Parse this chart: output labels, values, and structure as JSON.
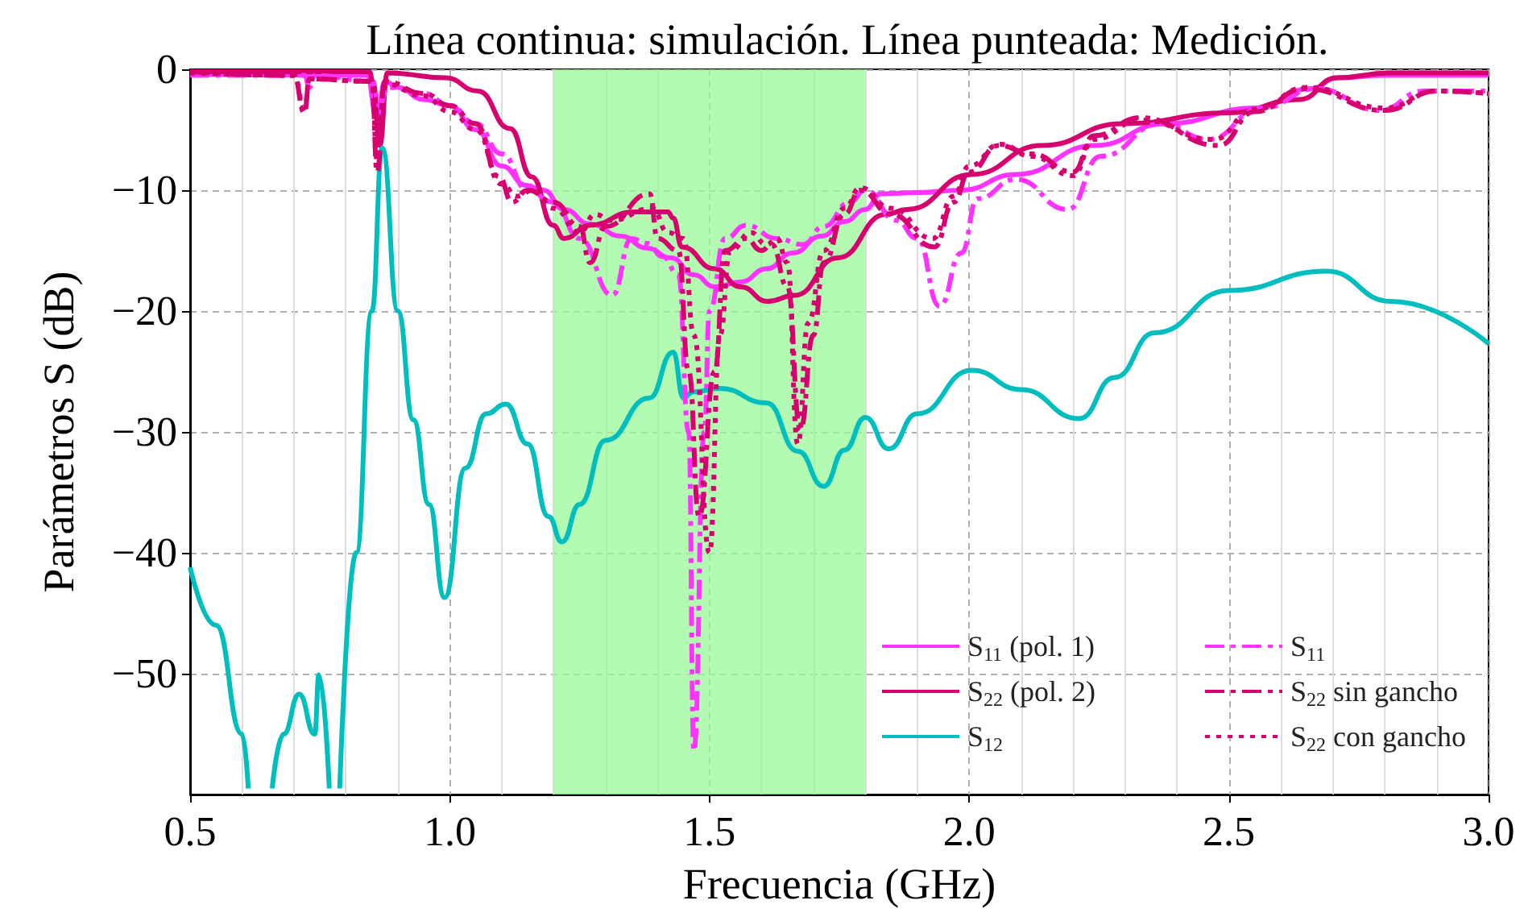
{
  "chart_data": {
    "type": "line",
    "title": "Línea continua: simulación. Línea punteada: Medición.",
    "xlabel": "Frecuencia (GHz)",
    "ylabel": "Parámetros S (dB)",
    "xlim": [
      0.5,
      3.0
    ],
    "ylim": [
      -60,
      0
    ],
    "xticks": [
      0.5,
      {
        "value": 0.6,
        "label": null
      },
      {
        "value": 0.7,
        "label": null
      },
      {
        "value": 0.8,
        "label": null
      },
      {
        "value": 0.9,
        "label": null
      },
      {
        "value": 1.0,
        "label": "1.0"
      },
      {
        "value": 1.1,
        "label": null
      },
      {
        "value": 1.2,
        "label": null
      },
      {
        "value": 1.3,
        "label": null
      },
      {
        "value": 1.4,
        "label": null
      },
      1.5,
      {
        "value": 1.6,
        "label": null
      },
      {
        "value": 1.7,
        "label": null
      },
      {
        "value": 1.8,
        "label": null
      },
      {
        "value": 1.9,
        "label": null
      },
      {
        "value": 2.0,
        "label": "2.0"
      },
      {
        "value": 2.1,
        "label": null
      },
      {
        "value": 2.2,
        "label": null
      },
      {
        "value": 2.3,
        "label": null
      },
      {
        "value": 2.4,
        "label": null
      },
      2.5,
      {
        "value": 2.6,
        "label": null
      },
      {
        "value": 2.7,
        "label": null
      },
      {
        "value": 2.8,
        "label": null
      },
      {
        "value": 2.9,
        "label": null
      },
      {
        "value": 3.0,
        "label": "3.0"
      }
    ],
    "yticks": [
      -50,
      -40,
      -30,
      -20,
      -10,
      0
    ],
    "grid": true,
    "legend": "bottom right",
    "bands": [
      {
        "axis": "x",
        "from": 1.2,
        "to": 1.8,
        "color": "#99fa99"
      }
    ],
    "series": [
      {
        "name": "S$_{11}$ (pol. 1)",
        "color": "#ff33ff",
        "line_style": "solid",
        "x": [
          0.5,
          0.84,
          0.86,
          0.875,
          0.9,
          0.95,
          1.0,
          1.05,
          1.1,
          1.147,
          1.18,
          1.22,
          1.27,
          1.33,
          1.38,
          1.426,
          1.47,
          1.51,
          1.56,
          1.61,
          1.66,
          1.716,
          1.76,
          1.8,
          1.83,
          1.9,
          1.985,
          2.09,
          2.243,
          2.377,
          2.553,
          2.657,
          2.71,
          2.8,
          3.0
        ],
        "values": [
          -0.4,
          -0.5,
          -4,
          -1,
          -1.5,
          -2.5,
          -3,
          -5,
          -8,
          -9.6,
          -10,
          -11.6,
          -12.8,
          -13.8,
          -14.8,
          -15.6,
          -17,
          -18,
          -17.6,
          -16.5,
          -15.2,
          -13.8,
          -12.6,
          -11.6,
          -10.3,
          -10.2,
          -10,
          -8.7,
          -6.3,
          -4.5,
          -3.2,
          -1.6,
          -0.7,
          -0.5,
          -0.5
        ]
      },
      {
        "name": "S$_{22}$ (pol. 2)",
        "color": "#d6006e",
        "line_style": "solid",
        "x": [
          0.5,
          0.845,
          0.852,
          0.865,
          0.88,
          0.992,
          1.054,
          1.116,
          1.158,
          1.199,
          1.22,
          1.27,
          1.354,
          1.42,
          1.43,
          1.447,
          1.51,
          1.56,
          1.612,
          1.664,
          1.747,
          1.84,
          1.88,
          2.005,
          2.14,
          2.295,
          2.5,
          2.636,
          2.708,
          2.81,
          3.0
        ],
        "values": [
          -0.2,
          -0.2,
          -1,
          -6.3,
          -0.3,
          -0.7,
          -1.8,
          -4.9,
          -8.9,
          -12.9,
          -14,
          -12.9,
          -11.8,
          -11.8,
          -12.3,
          -14.7,
          -16.5,
          -18,
          -19.2,
          -18.7,
          -15.6,
          -12,
          -11.6,
          -8.7,
          -6.3,
          -4.5,
          -3.6,
          -2.5,
          -0.7,
          -0.3,
          -0.3
        ]
      },
      {
        "name": "S$_{12}$",
        "color": "#00bebe",
        "line_style": "solid",
        "x": [
          0.5,
          0.55,
          0.6,
          0.612,
          0.635,
          0.658,
          0.68,
          0.71,
          0.74,
          0.748,
          0.768,
          0.775,
          0.788,
          0.82,
          0.85,
          0.87,
          0.9,
          0.93,
          0.96,
          0.99,
          1.03,
          1.07,
          1.108,
          1.15,
          1.19,
          1.216,
          1.25,
          1.3,
          1.384,
          1.43,
          1.45,
          1.468,
          1.52,
          1.61,
          1.67,
          1.72,
          1.76,
          1.8,
          1.845,
          1.9,
          2.005,
          2.1,
          2.212,
          2.28,
          2.357,
          2.5,
          2.688,
          2.812,
          3.0
        ],
        "values": [
          -41.2,
          -46,
          -55,
          -59.5,
          null,
          -59.5,
          -55,
          -51.7,
          -55,
          -50.1,
          -59.5,
          null,
          -59.5,
          -40,
          -20,
          -6.5,
          -20,
          -29,
          -36,
          -43.7,
          -33,
          -28.5,
          -27.7,
          -31,
          -37,
          -39.1,
          -36,
          -30.7,
          -27.2,
          -23.4,
          -27.2,
          -26.7,
          -26.4,
          -27.6,
          -31.6,
          -34.5,
          -31.5,
          -28.8,
          -31.4,
          -28.5,
          -24.9,
          -26.5,
          -28.9,
          -25.5,
          -21.8,
          -18.3,
          -16.7,
          -19.2,
          -22.7
        ]
      },
      {
        "name": "S$_{11}$",
        "color": "#ff33ff",
        "line_style": "dashdot",
        "x": [
          0.5,
          0.72,
          0.73,
          0.74,
          0.85,
          0.865,
          0.88,
          0.95,
          1.0,
          1.05,
          1.1,
          1.15,
          1.2,
          1.25,
          1.313,
          1.35,
          1.38,
          1.41,
          1.44,
          1.46,
          1.47,
          1.49,
          1.5,
          1.53,
          1.571,
          1.63,
          1.68,
          1.72,
          1.77,
          1.8,
          1.86,
          1.9,
          1.943,
          1.985,
          2.016,
          2.09,
          2.19,
          2.253,
          2.37,
          2.46,
          2.564,
          2.668,
          2.79,
          2.875,
          3.0
        ],
        "values": [
          -0.5,
          -0.5,
          -1.5,
          -0.5,
          -1,
          -3,
          -1.5,
          -2,
          -3,
          -4.5,
          -7,
          -10,
          -11,
          -14,
          -18.7,
          -14,
          -14.4,
          -15.5,
          -17,
          -30,
          -56.4,
          -30,
          -20,
          -14,
          -12.9,
          -14,
          -14.5,
          -13,
          -11,
          -10,
          -12.5,
          -14,
          -19.6,
          -15.2,
          -10.7,
          -9.1,
          -11.6,
          -7.2,
          -4.5,
          -5.8,
          -3.2,
          -1.6,
          -3.4,
          -1.8,
          -1.8
        ]
      },
      {
        "name": "S$_{22}$ sin gancho",
        "color": "#d6006e",
        "line_style": "dashdot",
        "x": [
          0.5,
          0.7,
          0.72,
          0.73,
          0.85,
          0.86,
          0.875,
          0.95,
          1.0,
          1.05,
          1.095,
          1.12,
          1.15,
          1.2,
          1.25,
          1.27,
          1.3,
          1.385,
          1.4,
          1.44,
          1.46,
          1.48,
          1.51,
          1.53,
          1.57,
          1.6,
          1.62,
          1.65,
          1.675,
          1.7,
          1.72,
          1.76,
          1.79,
          1.85,
          1.933,
          1.97,
          2.0,
          2.057,
          2.12,
          2.2,
          2.24,
          2.33,
          2.48,
          2.55,
          2.646,
          2.8,
          2.9,
          3.0
        ],
        "values": [
          -0.2,
          -0.5,
          -3.6,
          -0.8,
          -1,
          -8.5,
          -1,
          -2,
          -3,
          -4.5,
          -8.9,
          -11,
          -10,
          -11,
          -13,
          -16,
          -13,
          -10.3,
          -14,
          -15,
          -25,
          -37,
          -25,
          -15,
          -14,
          -15,
          -14.5,
          -18,
          -29.8,
          -22,
          -16,
          -12,
          -10,
          -12,
          -14.7,
          -11,
          -8.5,
          -6.3,
          -7,
          -8.5,
          -5.5,
          -4,
          -6.3,
          -3.5,
          -1.6,
          -3.4,
          -1.8,
          -2
        ]
      },
      {
        "name": "S$_{22}$ con gancho",
        "color": "#d6006e",
        "line_style": "dotted",
        "x": [
          0.5,
          0.7,
          0.72,
          0.73,
          0.85,
          0.86,
          0.875,
          0.95,
          1.0,
          1.05,
          1.1,
          1.13,
          1.16,
          1.2,
          1.25,
          1.28,
          1.31,
          1.39,
          1.42,
          1.45,
          1.47,
          1.5,
          1.52,
          1.54,
          1.58,
          1.61,
          1.63,
          1.65,
          1.67,
          1.69,
          1.72,
          1.76,
          1.79,
          1.85,
          1.93,
          1.97,
          2.0,
          2.06,
          2.12,
          2.2,
          2.24,
          2.33,
          2.47,
          2.55,
          2.65,
          2.8,
          2.9,
          3.0
        ],
        "values": [
          -0.3,
          -0.5,
          -3.2,
          -0.8,
          -1,
          -7.5,
          -1.2,
          -2.2,
          -3.5,
          -5,
          -9.5,
          -10.5,
          -10,
          -11.5,
          -13.5,
          -12,
          -12.5,
          -11.5,
          -13.5,
          -14,
          -22,
          -40,
          -22,
          -15,
          -13.5,
          -14.5,
          -14,
          -16,
          -31,
          -21,
          -15,
          -11.5,
          -9.8,
          -11.5,
          -14,
          -10.5,
          -8,
          -6.2,
          -7.2,
          -8.8,
          -5.8,
          -4.2,
          -5.8,
          -3.3,
          -1.5,
          -3.2,
          -1.8,
          -2
        ]
      }
    ]
  }
}
